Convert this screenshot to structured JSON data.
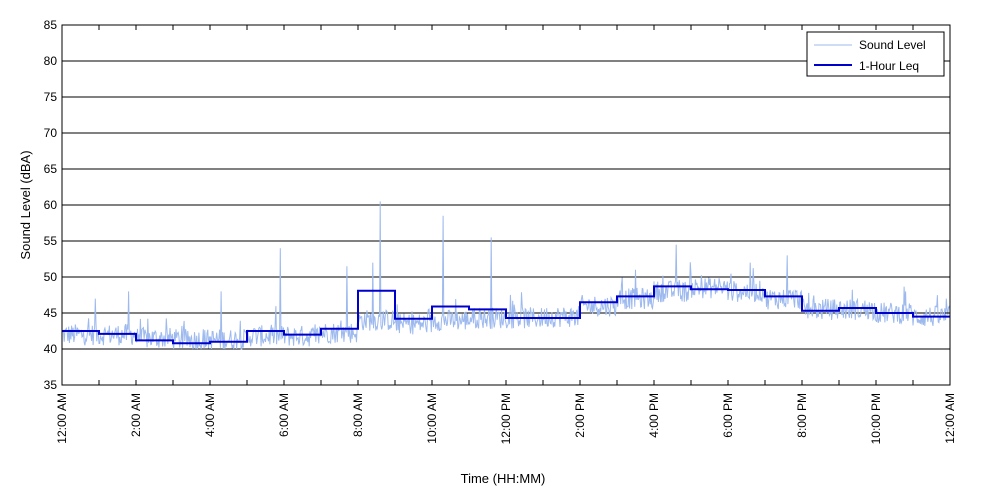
{
  "chart_data": {
    "type": "line",
    "title": "",
    "xlabel": "Time (HH:MM)",
    "ylabel": "Sound Level (dBA)",
    "ylim": [
      35,
      85
    ],
    "yticks": [
      35,
      40,
      45,
      50,
      55,
      60,
      65,
      70,
      75,
      80,
      85
    ],
    "xlim": [
      0,
      24
    ],
    "x_ticks": [
      {
        "hour": 0,
        "label": "12:00 AM"
      },
      {
        "hour": 2,
        "label": "2:00 AM"
      },
      {
        "hour": 4,
        "label": "4:00 AM"
      },
      {
        "hour": 6,
        "label": "6:00 AM"
      },
      {
        "hour": 8,
        "label": "8:00 AM"
      },
      {
        "hour": 10,
        "label": "10:00 AM"
      },
      {
        "hour": 12,
        "label": "12:00 PM"
      },
      {
        "hour": 14,
        "label": "2:00 PM"
      },
      {
        "hour": 16,
        "label": "4:00 PM"
      },
      {
        "hour": 18,
        "label": "6:00 PM"
      },
      {
        "hour": 20,
        "label": "8:00 PM"
      },
      {
        "hour": 22,
        "label": "10:00 PM"
      },
      {
        "hour": 24,
        "label": "12:00 AM"
      }
    ],
    "grid": "horizontal",
    "legend_position": "top-right",
    "colors": {
      "sound_level": "#9db9ee",
      "leq": "#0000cc"
    },
    "series": [
      {
        "name": "Sound Level",
        "style": "thin-line",
        "hourly_mean": [
          41.5,
          41.5,
          41.0,
          40.8,
          40.8,
          41.3,
          41.3,
          41.8,
          43.5,
          43.0,
          43.5,
          43.8,
          43.8,
          44.0,
          45.5,
          46.5,
          47.5,
          48.0,
          47.5,
          46.5,
          45.0,
          45.0,
          44.5,
          44.0
        ],
        "peaks": [
          {
            "hour": 0.9,
            "value": 47.0
          },
          {
            "hour": 1.8,
            "value": 48.0
          },
          {
            "hour": 4.3,
            "value": 48.0
          },
          {
            "hour": 5.9,
            "value": 54.0
          },
          {
            "hour": 7.7,
            "value": 51.5
          },
          {
            "hour": 8.4,
            "value": 52.0
          },
          {
            "hour": 8.6,
            "value": 60.5
          },
          {
            "hour": 10.3,
            "value": 58.5
          },
          {
            "hour": 11.6,
            "value": 55.5
          },
          {
            "hour": 15.5,
            "value": 51.0
          },
          {
            "hour": 16.6,
            "value": 54.5
          },
          {
            "hour": 18.6,
            "value": 52.0
          },
          {
            "hour": 19.6,
            "value": 53.0
          },
          {
            "hour": 22.8,
            "value": 48.0
          }
        ]
      },
      {
        "name": "1-Hour Leq",
        "style": "step",
        "values": [
          42.5,
          42.1,
          41.2,
          40.8,
          41.0,
          42.5,
          42.0,
          42.8,
          48.1,
          44.2,
          45.9,
          45.5,
          44.3,
          44.3,
          46.5,
          47.3,
          48.7,
          48.3,
          48.2,
          47.3,
          45.3,
          45.7,
          45.0,
          44.5
        ]
      }
    ]
  }
}
